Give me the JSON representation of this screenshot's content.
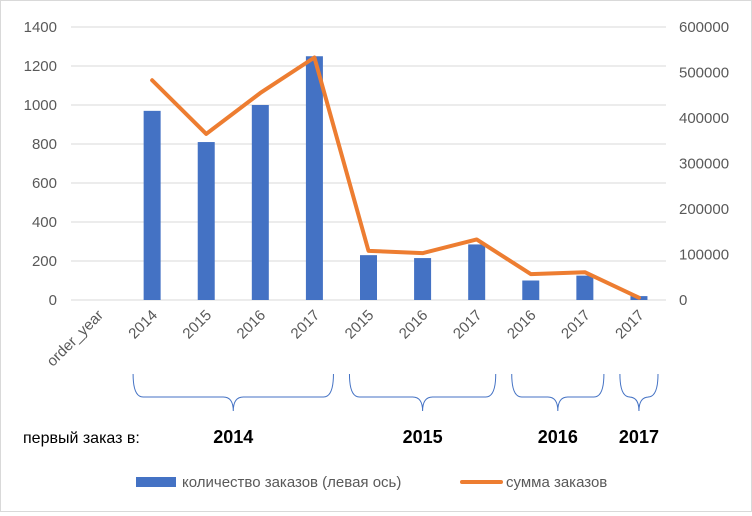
{
  "chart_data": {
    "type": "bar+line",
    "categories": [
      "order_year",
      "2014",
      "2015",
      "2016",
      "2017",
      "2015",
      "2016",
      "2017",
      "2016",
      "2017",
      "2017"
    ],
    "groups": [
      {
        "label": "2014",
        "from": 1,
        "to": 4
      },
      {
        "label": "2015",
        "from": 5,
        "to": 7
      },
      {
        "label": "2016",
        "from": 8,
        "to": 9
      },
      {
        "label": "2017",
        "from": 10,
        "to": 10
      }
    ],
    "group_prefix": "первый заказ в:",
    "series": [
      {
        "name": "количество заказов (левая ось)",
        "type": "bar",
        "axis": "left",
        "color": "#4472c4",
        "values": [
          null,
          970,
          810,
          1000,
          1250,
          230,
          215,
          285,
          100,
          125,
          20
        ]
      },
      {
        "name": "сумма заказов",
        "type": "line",
        "axis": "right",
        "color": "#ed7d31",
        "values": [
          null,
          483000,
          365000,
          455000,
          533000,
          108000,
          103000,
          133000,
          57000,
          61000,
          5000
        ]
      }
    ],
    "y_left": {
      "min": 0,
      "max": 1400,
      "ticks": [
        "0",
        "200",
        "400",
        "600",
        "800",
        "1000",
        "1200",
        "1400"
      ]
    },
    "y_right": {
      "min": 0,
      "max": 600000,
      "ticks": [
        "0",
        "100000",
        "200000",
        "300000",
        "400000",
        "500000",
        "600000"
      ]
    },
    "grid": true,
    "legend": "bottom"
  }
}
